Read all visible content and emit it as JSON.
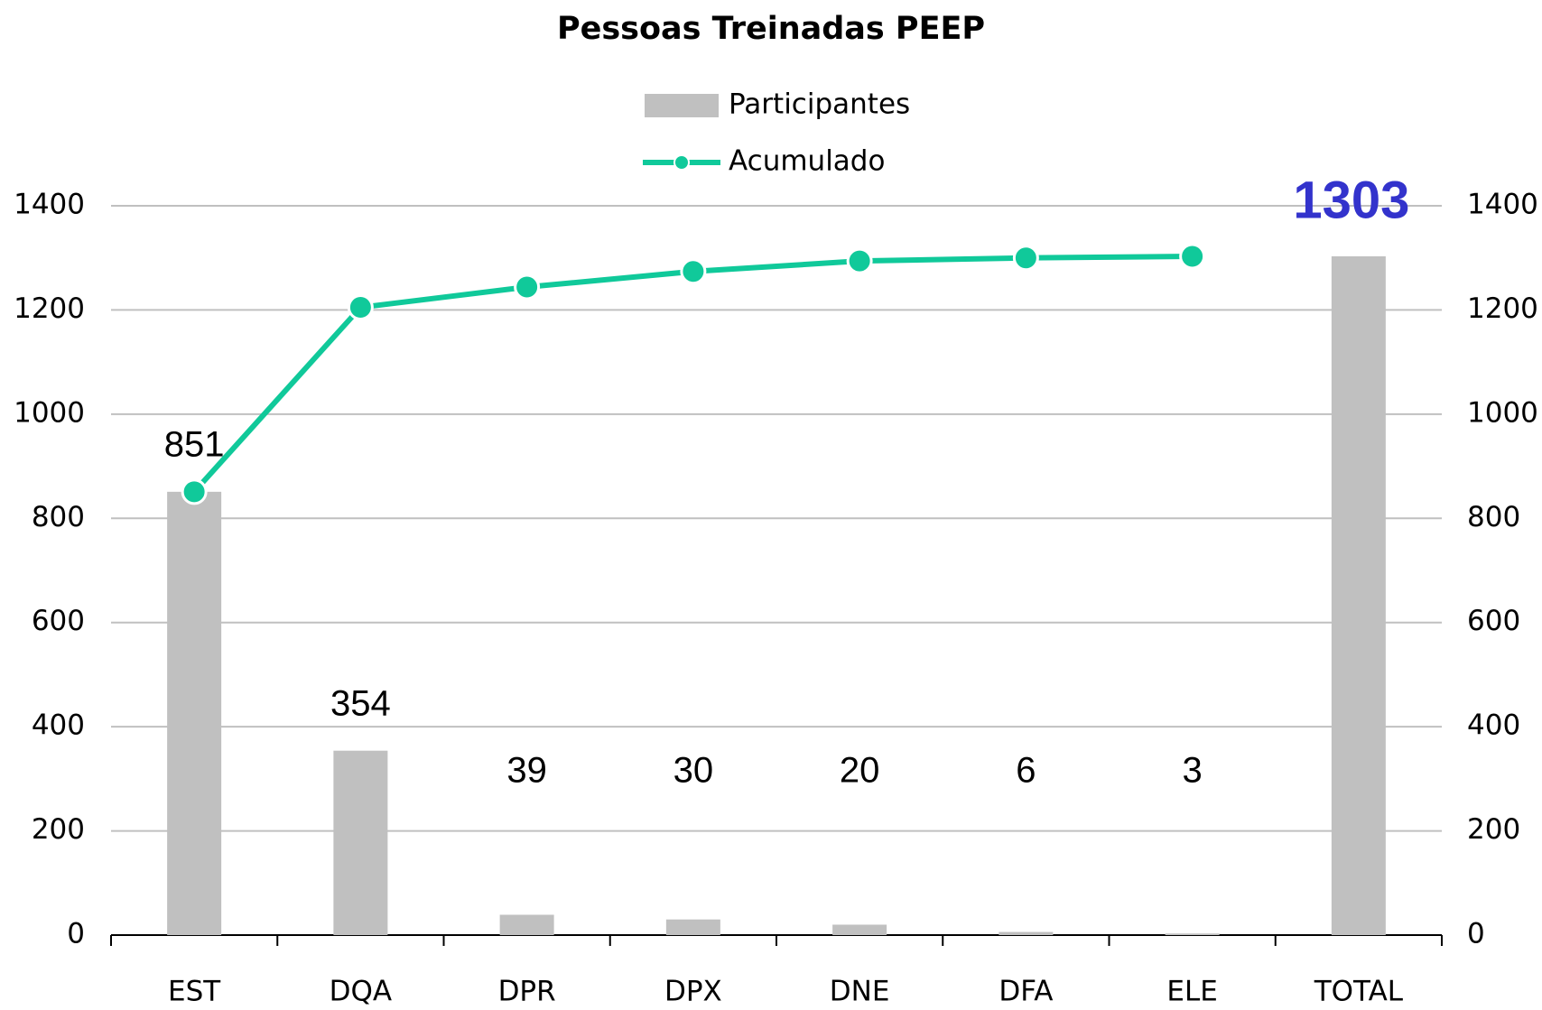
{
  "chart_data": {
    "type": "bar_line",
    "title": "Pessoas Treinadas PEEP",
    "categories": [
      "EST",
      "DQA",
      "DPR",
      "DPX",
      "DNE",
      "DFA",
      "ELE",
      "TOTAL"
    ],
    "series": [
      {
        "name": "Participantes",
        "type": "bar",
        "color": "#c0c0c0",
        "values": [
          851,
          354,
          39,
          30,
          20,
          6,
          3,
          1303
        ]
      },
      {
        "name": "Acumulado",
        "type": "line",
        "axis": "y2",
        "color": "#10c99a",
        "values": [
          851,
          1205,
          1244,
          1274,
          1294,
          1300,
          1303,
          null
        ]
      }
    ],
    "ylim": [
      0,
      1400
    ],
    "yticks": [
      0,
      200,
      400,
      600,
      800,
      1000,
      1200,
      1400
    ],
    "y2lim": [
      0,
      1400
    ],
    "y2ticks": [
      0,
      200,
      400,
      600,
      800,
      1000,
      1200,
      1400
    ],
    "grid": true,
    "legend": "top"
  }
}
